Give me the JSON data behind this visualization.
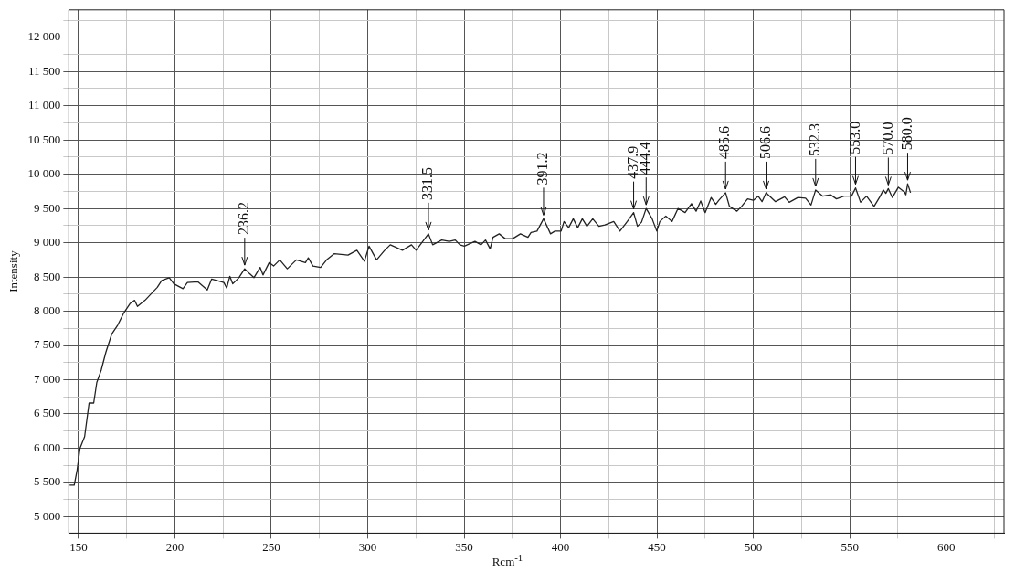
{
  "chart_data": {
    "type": "line",
    "xlabel": "Rcm$^{-1}$",
    "ylabel": "Intensity",
    "xlim": [
      145,
      630
    ],
    "ylim": [
      4760,
      12400
    ],
    "xticks": [
      150,
      {
        "value": 175,
        "label": null
      },
      200,
      {
        "value": 225,
        "label": null
      },
      250,
      {
        "value": 275,
        "label": null
      },
      300,
      {
        "value": 325,
        "label": null
      },
      350,
      {
        "value": 375,
        "label": null
      },
      400,
      {
        "value": 425,
        "label": null
      },
      450,
      {
        "value": 475,
        "label": null
      },
      500,
      {
        "value": 525,
        "label": null
      },
      550,
      {
        "value": 575,
        "label": null
      },
      600,
      {
        "value": 625,
        "label": null
      }
    ],
    "yticks": [
      {
        "value": 5000,
        "label": "5 000"
      },
      {
        "value": 5250,
        "label": null
      },
      {
        "value": 5500,
        "label": "5 500"
      },
      {
        "value": 5750,
        "label": null
      },
      {
        "value": 6000,
        "label": "6 000"
      },
      {
        "value": 6250,
        "label": null
      },
      {
        "value": 6500,
        "label": "6 500"
      },
      {
        "value": 6750,
        "label": null
      },
      {
        "value": 7000,
        "label": "7 000"
      },
      {
        "value": 7250,
        "label": null
      },
      {
        "value": 7500,
        "label": "7 500"
      },
      {
        "value": 7750,
        "label": null
      },
      {
        "value": 8000,
        "label": "8 000"
      },
      {
        "value": 8250,
        "label": null
      },
      {
        "value": 8500,
        "label": "8 500"
      },
      {
        "value": 8750,
        "label": null
      },
      {
        "value": 9000,
        "label": "9 000"
      },
      {
        "value": 9250,
        "label": null
      },
      {
        "value": 9500,
        "label": "9 500"
      },
      {
        "value": 9750,
        "label": null
      },
      {
        "value": 10000,
        "label": "10 000"
      },
      {
        "value": 10250,
        "label": null
      },
      {
        "value": 10500,
        "label": "10 500"
      },
      {
        "value": 10750,
        "label": null
      },
      {
        "value": 11000,
        "label": "11 000"
      },
      {
        "value": 11250,
        "label": null
      },
      {
        "value": 11500,
        "label": "11 500"
      },
      {
        "value": 11750,
        "label": null
      },
      {
        "value": 12000,
        "label": "12 000"
      },
      {
        "value": 12250,
        "label": null
      }
    ],
    "grid": true,
    "legend": false,
    "marker": "none",
    "line_style": "solid",
    "series": [
      {
        "color": "#222222",
        "x": [
          145.4,
          147.8,
          149.3,
          150.8,
          153.2,
          155.5,
          157.9,
          159.5,
          161.8,
          164.2,
          167.3,
          170.4,
          173.6,
          176.7,
          179.1,
          180.6,
          184.5,
          190.9,
          193.2,
          197.1,
          199.5,
          204.2,
          206.5,
          211.9,
          216.8,
          219.1,
          225.4,
          226.9,
          228.5,
          230,
          233.2,
          236.2,
          238.7,
          241,
          244.2,
          245.7,
          248.9,
          251.2,
          254.4,
          258.3,
          263,
          267.7,
          269.2,
          271.6,
          275.6,
          278.7,
          282.7,
          289.8,
          294.4,
          298.3,
          300.7,
          304.6,
          308.5,
          311.7,
          314.9,
          318,
          322.7,
          325.1,
          331.5,
          333.7,
          338.4,
          342.3,
          345.4,
          347.8,
          350.1,
          355.6,
          358.8,
          361.1,
          363.5,
          365,
          368.2,
          371.3,
          375.2,
          379.2,
          383.1,
          384.7,
          387.8,
          391.2,
          394.8,
          397.1,
          400.3,
          401.8,
          404.2,
          406.6,
          408.9,
          411.3,
          413.7,
          416.7,
          419.9,
          423,
          427.6,
          430.8,
          434.6,
          437.9,
          439.9,
          442,
          444.4,
          447.5,
          449.9,
          451.5,
          454.6,
          457.8,
          460.9,
          464.6,
          467.9,
          470.3,
          472.7,
          475,
          478.1,
          480.5,
          482.1,
          485.6,
          487.6,
          491.5,
          493.9,
          497,
          500,
          502.5,
          504.5,
          506.6,
          511.5,
          516.2,
          518.6,
          523.1,
          527.1,
          529.9,
          532.3,
          536,
          540,
          543.1,
          547,
          550.9,
          553,
          555.6,
          558.7,
          562.6,
          565.8,
          567.4,
          568.7,
          570,
          572.1,
          575.2,
          578.4,
          579.1,
          580,
          581.5
        ],
        "values": [
          5460,
          5460,
          5680,
          6000,
          6170,
          6660,
          6660,
          6960,
          7140,
          7400,
          7670,
          7800,
          7980,
          8110,
          8160,
          8070,
          8160,
          8350,
          8450,
          8490,
          8400,
          8330,
          8420,
          8430,
          8310,
          8470,
          8420,
          8340,
          8510,
          8400,
          8490,
          8620,
          8550,
          8490,
          8640,
          8530,
          8710,
          8660,
          8750,
          8620,
          8750,
          8710,
          8780,
          8660,
          8640,
          8750,
          8840,
          8820,
          8890,
          8730,
          8950,
          8750,
          8880,
          8970,
          8930,
          8890,
          8970,
          8890,
          9130,
          8970,
          9040,
          9020,
          9040,
          8970,
          8950,
          9020,
          8970,
          9040,
          8910,
          9080,
          9130,
          9060,
          9060,
          9130,
          9080,
          9150,
          9170,
          9350,
          9130,
          9170,
          9170,
          9310,
          9220,
          9350,
          9220,
          9350,
          9240,
          9350,
          9240,
          9260,
          9310,
          9170,
          9310,
          9440,
          9240,
          9300,
          9500,
          9350,
          9170,
          9310,
          9390,
          9310,
          9500,
          9440,
          9570,
          9460,
          9610,
          9440,
          9660,
          9560,
          9620,
          9730,
          9530,
          9460,
          9530,
          9640,
          9620,
          9680,
          9600,
          9730,
          9600,
          9670,
          9590,
          9660,
          9650,
          9550,
          9770,
          9680,
          9700,
          9640,
          9680,
          9680,
          9800,
          9590,
          9680,
          9530,
          9680,
          9770,
          9720,
          9790,
          9660,
          9810,
          9740,
          9700,
          9860,
          9730
        ]
      }
    ],
    "annotations": [
      {
        "text": "236.2",
        "x": 236.2,
        "y": 8620
      },
      {
        "text": "331.5",
        "x": 331.5,
        "y": 9130
      },
      {
        "text": "391.2",
        "x": 391.2,
        "y": 9350
      },
      {
        "text": "437.9",
        "x": 437.9,
        "y": 9440
      },
      {
        "text": "444.4",
        "x": 444.4,
        "y": 9500
      },
      {
        "text": "485.6",
        "x": 485.6,
        "y": 9730
      },
      {
        "text": "506.6",
        "x": 506.6,
        "y": 9730
      },
      {
        "text": "532.3",
        "x": 532.3,
        "y": 9770
      },
      {
        "text": "553.0",
        "x": 553,
        "y": 9800
      },
      {
        "text": "570.0",
        "x": 570,
        "y": 9790
      },
      {
        "text": "580.0",
        "x": 580,
        "y": 9860
      }
    ]
  }
}
